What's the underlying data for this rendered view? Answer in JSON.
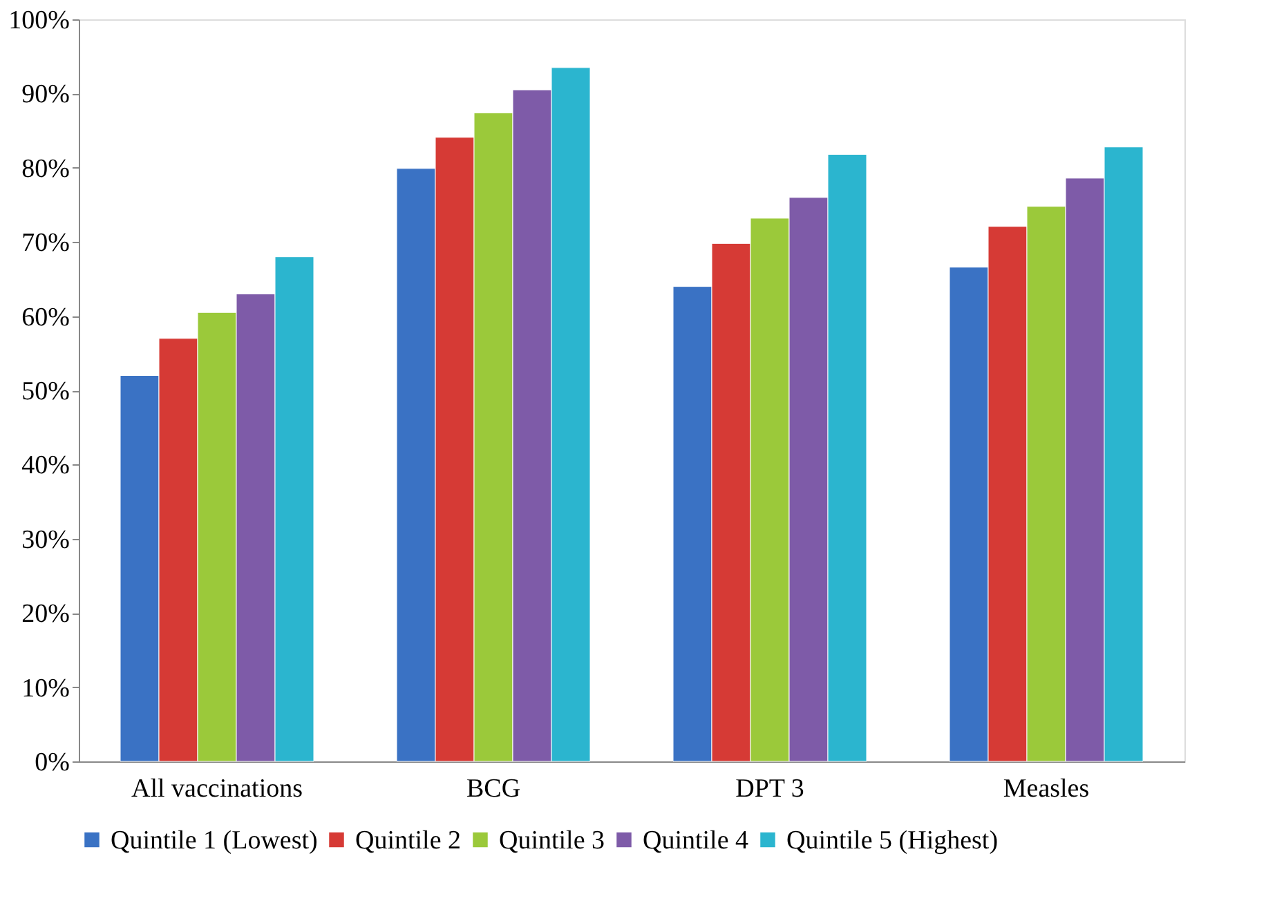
{
  "chart_data": {
    "type": "bar",
    "categories": [
      "All vaccinations",
      "BCG",
      "DPT 3",
      "Measles"
    ],
    "series": [
      {
        "name": "Quintile 1 (Lowest)",
        "color": "#3a72c4",
        "values": [
          52.0,
          79.9,
          64.0,
          66.6
        ]
      },
      {
        "name": "Quintile 2",
        "color": "#d63a35",
        "values": [
          57.0,
          84.1,
          69.8,
          72.1
        ]
      },
      {
        "name": "Quintile 3",
        "color": "#9bc93a",
        "values": [
          60.5,
          87.4,
          73.2,
          74.8
        ]
      },
      {
        "name": "Quintile 4",
        "color": "#7e5ba8",
        "values": [
          63.0,
          90.5,
          76.0,
          78.6
        ]
      },
      {
        "name": "Quintile 5 (Highest)",
        "color": "#2bb5cf",
        "values": [
          68.0,
          93.5,
          81.8,
          82.8
        ]
      }
    ],
    "ylim": [
      0,
      100
    ],
    "yticks": [
      {
        "value": 0,
        "label": "0%"
      },
      {
        "value": 10,
        "label": "10%"
      },
      {
        "value": 20,
        "label": "20%"
      },
      {
        "value": 30,
        "label": "30%"
      },
      {
        "value": 40,
        "label": "40%"
      },
      {
        "value": 50,
        "label": "50%"
      },
      {
        "value": 60,
        "label": "60%"
      },
      {
        "value": 70,
        "label": "70%"
      },
      {
        "value": 80,
        "label": "80%"
      },
      {
        "value": 90,
        "label": "90%"
      },
      {
        "value": 100,
        "label": "100%"
      }
    ],
    "grid": false,
    "legend": "bottom"
  }
}
